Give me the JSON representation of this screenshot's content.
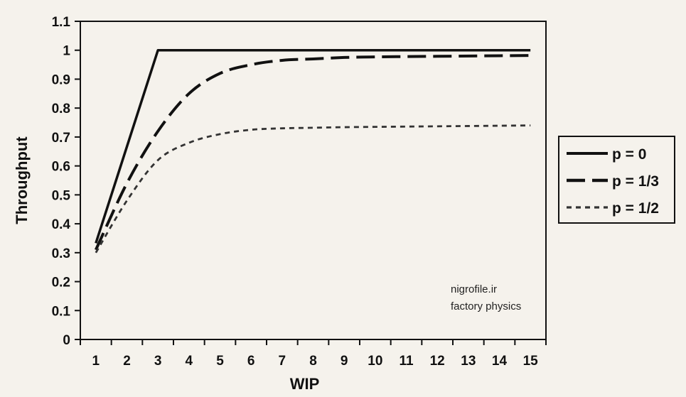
{
  "chart_data": {
    "type": "line",
    "xlabel": "WIP",
    "ylabel": "Throughput",
    "xlim": [
      0.5,
      15.5
    ],
    "ylim": [
      0,
      1.1
    ],
    "x_ticks": [
      1,
      2,
      3,
      4,
      5,
      6,
      7,
      8,
      9,
      10,
      11,
      12,
      13,
      14,
      15
    ],
    "y_ticks": [
      0,
      0.1,
      0.2,
      0.3,
      0.4,
      0.5,
      0.6,
      0.7,
      0.8,
      0.9,
      1,
      1.1
    ],
    "y_tick_labels": [
      "0",
      "0.1",
      "0.2",
      "0.3",
      "0.4",
      "0.5",
      "0.6",
      "0.7",
      "0.8",
      "0.9",
      "1",
      "1.1"
    ],
    "grid": false,
    "legend_position": "right",
    "series": [
      {
        "name": "p = 0",
        "style": "solid",
        "color": "#111111",
        "x": [
          1,
          3,
          15
        ],
        "y": [
          0.333,
          1.0,
          1.0
        ]
      },
      {
        "name": "p = 1/3",
        "style": "long-dash",
        "color": "#111111",
        "x": [
          1,
          2,
          3,
          4,
          5,
          6,
          7,
          8,
          9,
          10,
          11,
          12,
          13,
          14,
          15
        ],
        "y": [
          0.31,
          0.54,
          0.72,
          0.85,
          0.92,
          0.95,
          0.965,
          0.97,
          0.975,
          0.977,
          0.978,
          0.979,
          0.98,
          0.981,
          0.982
        ]
      },
      {
        "name": "p = 1/2",
        "style": "short-dash",
        "color": "#333333",
        "x": [
          1,
          2,
          3,
          4,
          5,
          6,
          7,
          8,
          9,
          10,
          11,
          12,
          13,
          14,
          15
        ],
        "y": [
          0.3,
          0.48,
          0.62,
          0.68,
          0.71,
          0.725,
          0.73,
          0.732,
          0.734,
          0.735,
          0.736,
          0.737,
          0.738,
          0.739,
          0.74
        ]
      }
    ]
  },
  "annotations": {
    "line1": "nigrofile.ir",
    "line2": "factory physics"
  }
}
